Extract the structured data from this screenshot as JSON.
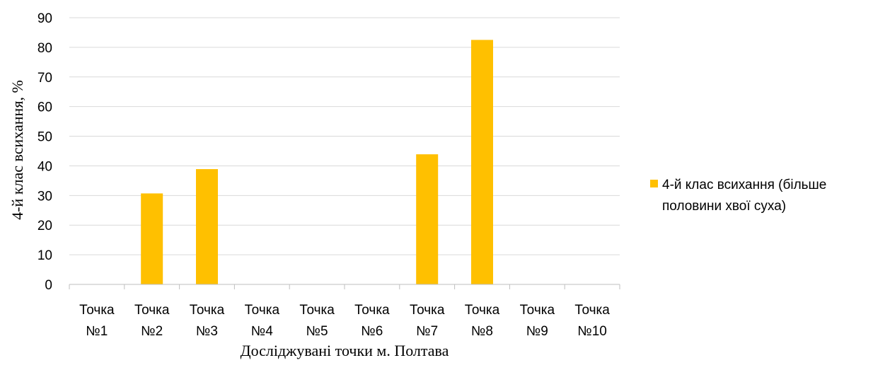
{
  "chart_data": {
    "type": "bar",
    "categories": [
      [
        "Точка",
        "№1"
      ],
      [
        "Точка",
        "№2"
      ],
      [
        "Точка",
        "№3"
      ],
      [
        "Точка",
        "№4"
      ],
      [
        "Точка",
        "№5"
      ],
      [
        "Точка",
        "№6"
      ],
      [
        "Точка",
        "№7"
      ],
      [
        "Точка",
        "№8"
      ],
      [
        "Точка",
        "№9"
      ],
      [
        "Точка",
        "№10"
      ]
    ],
    "series": [
      {
        "name": "4-й клас всихання (більше половини хвої суха)",
        "legend_lines": [
          "4-й клас всихання (більше",
          "половини хвої суха)"
        ],
        "color": "#FFC000",
        "values": [
          0,
          30.7,
          38.9,
          0,
          0,
          0,
          43.9,
          82.5,
          0,
          0
        ]
      }
    ],
    "xlabel": "Досліджувані точки м. Полтава",
    "ylabel": "4-й клас всихання, %",
    "ylim": [
      0,
      90
    ],
    "yticks": [
      0,
      10,
      20,
      30,
      40,
      50,
      60,
      70,
      80,
      90
    ],
    "grid": true,
    "legend_position": "right"
  }
}
